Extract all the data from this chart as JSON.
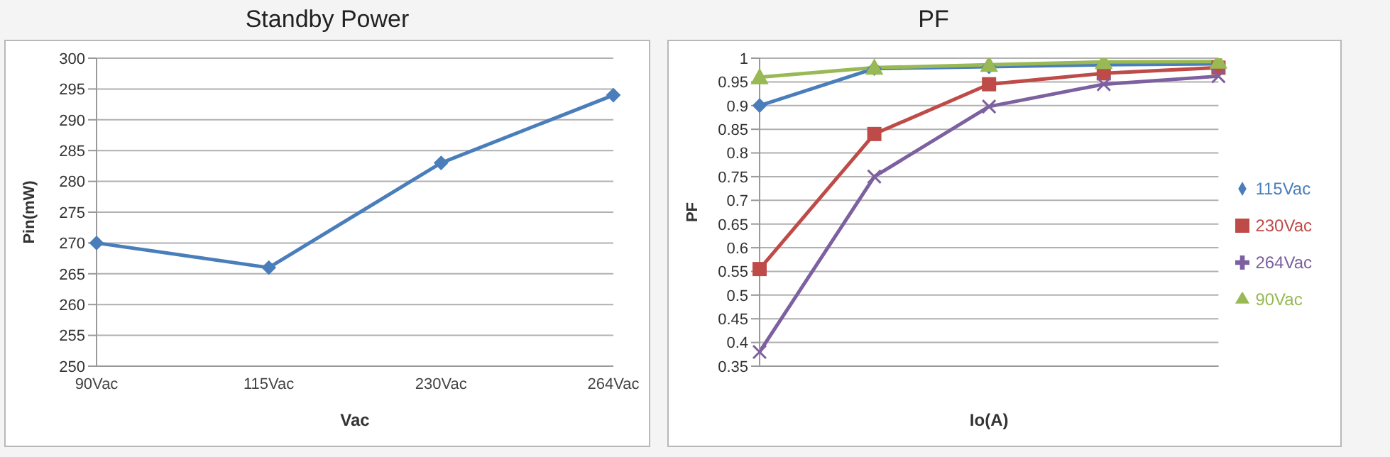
{
  "chart_data": [
    {
      "type": "line",
      "title": "Standby Power",
      "xlabel": "Vac",
      "ylabel": "Pin(mW)",
      "categories": [
        "90Vac",
        "115Vac",
        "230Vac",
        "264Vac"
      ],
      "series": [
        {
          "color": "#4a7ebb",
          "values": [
            270,
            266,
            283,
            294
          ],
          "marker": "diamond"
        }
      ],
      "ylim": [
        250,
        300
      ],
      "yticks": [
        250,
        255,
        260,
        265,
        270,
        275,
        280,
        285,
        290,
        295,
        300
      ],
      "grid": "y",
      "legend": false
    },
    {
      "type": "line",
      "title": "PF",
      "xlabel": "Io(A)",
      "ylabel": "PF",
      "categories": [
        null,
        null,
        null,
        null,
        null
      ],
      "tick_labels": "y",
      "series": [
        {
          "name": "115Vac",
          "color": "#4a7ebb",
          "values": [
            0.9,
            0.978,
            0.982,
            0.986,
            0.988
          ],
          "marker": "diamond"
        },
        {
          "name": "230Vac",
          "color": "#be4b48",
          "values": [
            0.555,
            0.84,
            0.945,
            0.968,
            0.98
          ],
          "marker": "square"
        },
        {
          "name": "90Vac",
          "color": "#98b954",
          "values": [
            0.96,
            0.98,
            0.986,
            0.992,
            0.993
          ],
          "marker": "triangle"
        },
        {
          "name": "264Vac",
          "color": "#7d60a0",
          "values": [
            0.38,
            0.75,
            0.898,
            0.945,
            0.962
          ],
          "marker": "cross"
        }
      ],
      "ylim": [
        0.35,
        1
      ],
      "yticks": [
        0.35,
        0.4,
        0.45,
        0.5,
        0.55,
        0.6,
        0.65,
        0.7,
        0.75,
        0.8,
        0.85,
        0.9,
        0.95,
        1
      ],
      "grid": "y",
      "legend": "right"
    }
  ]
}
